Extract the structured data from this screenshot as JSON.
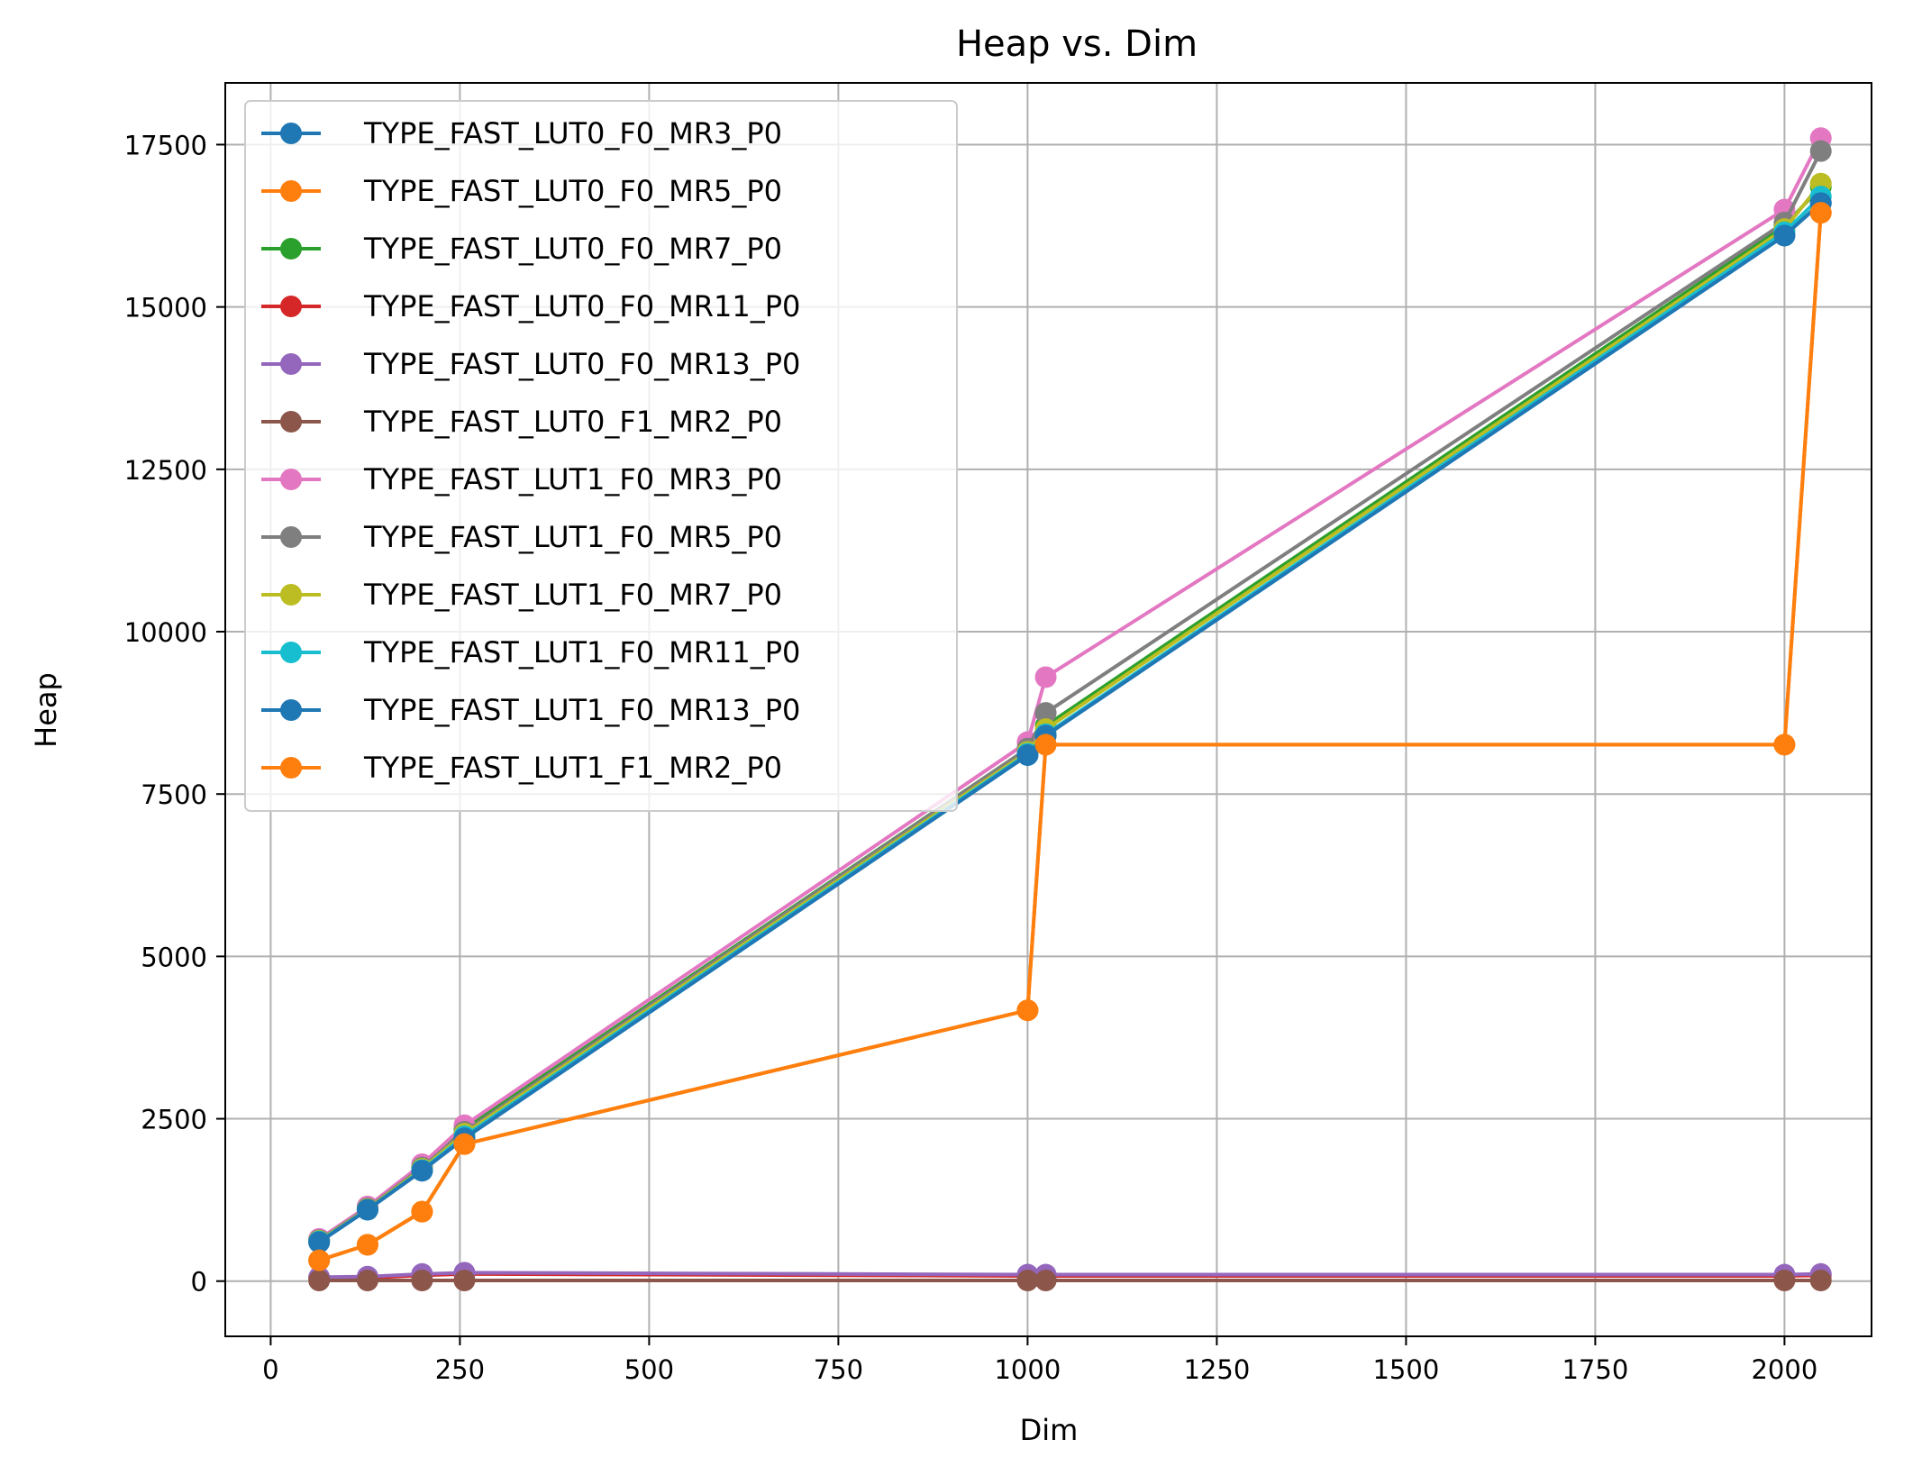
{
  "chart_data": {
    "type": "line",
    "title": "Heap vs. Dim",
    "xlabel": "Dim",
    "ylabel": "Heap",
    "xlim": [
      -60,
      2115
    ],
    "ylim": [
      -850,
      18450
    ],
    "xticks": [
      0,
      250,
      500,
      750,
      1000,
      1250,
      1500,
      1750,
      2000
    ],
    "yticks": [
      0,
      2500,
      5000,
      7500,
      10000,
      12500,
      15000,
      17500
    ],
    "grid": true,
    "legend_position": "top-left",
    "x": [
      64,
      128,
      200,
      256,
      1000,
      1024,
      2000,
      2048
    ],
    "series": [
      {
        "name": "TYPE_FAST_LUT0_F0_MR3_P0",
        "color": "#1f77b4",
        "values": [
          600,
          1100,
          1700,
          2200,
          8100,
          8400,
          16100,
          16600
        ]
      },
      {
        "name": "TYPE_FAST_LUT0_F0_MR5_P0",
        "color": "#ff7f0e",
        "values": [
          320,
          560,
          1070,
          2110,
          4170,
          8260,
          8260,
          16450
        ]
      },
      {
        "name": "TYPE_FAST_LUT0_F0_MR7_P0",
        "color": "#2ca02c",
        "values": [
          640,
          1130,
          1760,
          2340,
          8200,
          8550,
          16250,
          16850
        ]
      },
      {
        "name": "TYPE_FAST_LUT0_F0_MR11_P0",
        "color": "#d62728",
        "values": [
          50,
          50,
          90,
          110,
          80,
          80,
          80,
          90
        ]
      },
      {
        "name": "TYPE_FAST_LUT0_F0_MR13_P0",
        "color": "#9467bd",
        "values": [
          60,
          70,
          110,
          130,
          100,
          100,
          100,
          110
        ]
      },
      {
        "name": "TYPE_FAST_LUT0_F1_MR2_P0",
        "color": "#8c564b",
        "values": [
          10,
          10,
          10,
          10,
          10,
          10,
          10,
          10
        ]
      },
      {
        "name": "TYPE_FAST_LUT1_F0_MR3_P0",
        "color": "#e377c2",
        "values": [
          650,
          1150,
          1800,
          2400,
          8300,
          9300,
          16500,
          17600
        ]
      },
      {
        "name": "TYPE_FAST_LUT1_F0_MR5_P0",
        "color": "#7f7f7f",
        "values": [
          630,
          1120,
          1750,
          2300,
          8200,
          8750,
          16300,
          17400
        ]
      },
      {
        "name": "TYPE_FAST_LUT1_F0_MR7_P0",
        "color": "#bcbd22",
        "values": [
          620,
          1110,
          1730,
          2270,
          8150,
          8500,
          16200,
          16900
        ]
      },
      {
        "name": "TYPE_FAST_LUT1_F0_MR11_P0",
        "color": "#17becf",
        "values": [
          610,
          1100,
          1710,
          2230,
          8120,
          8420,
          16150,
          16700
        ]
      },
      {
        "name": "TYPE_FAST_LUT1_F0_MR13_P0",
        "color": "#1f77b4",
        "values": [
          600,
          1100,
          1700,
          2200,
          8100,
          8400,
          16100,
          16600
        ]
      },
      {
        "name": "TYPE_FAST_LUT1_F1_MR2_P0",
        "color": "#ff7f0e",
        "values": [
          320,
          560,
          1070,
          2110,
          4170,
          8260,
          8260,
          16450
        ]
      }
    ]
  }
}
